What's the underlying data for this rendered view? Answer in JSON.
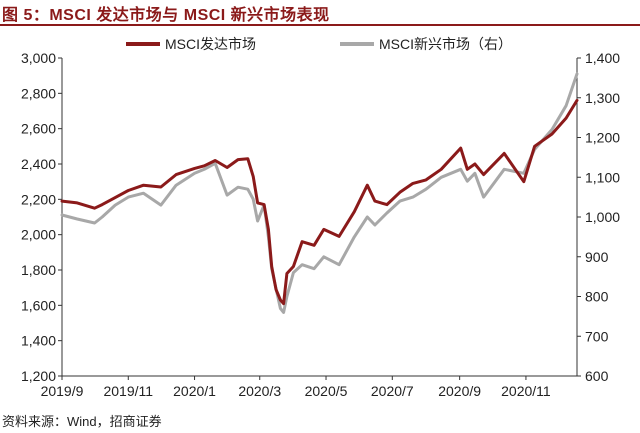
{
  "title": "图 5：MSCI 发达市场与 MSCI 新兴市场表现",
  "source": "资料来源：Wind，招商证券",
  "colors": {
    "title": "#8b1a1a",
    "series_dm": "#8b1a1a",
    "series_em": "#a8a8a8",
    "axis": "#333333"
  },
  "chart_data": {
    "type": "line",
    "title": "图 5：MSCI 发达市场与 MSCI 新兴市场表现",
    "grid": false,
    "legend_position": "top",
    "x_range": [
      "2019-09-01",
      "2020-12-18"
    ],
    "x_ticks": [
      "2019/9",
      "2019/11",
      "2020/1",
      "2020/3",
      "2020/5",
      "2020/7",
      "2020/9",
      "2020/11"
    ],
    "y_left": {
      "min": 1200,
      "max": 3000,
      "ticks": [
        "1,200",
        "1,400",
        "1,600",
        "1,800",
        "2,000",
        "2,200",
        "2,400",
        "2,600",
        "2,800",
        "3,000"
      ]
    },
    "y_right": {
      "min": 600,
      "max": 1400,
      "ticks": [
        "600",
        "700",
        "800",
        "900",
        "1,000",
        "1,100",
        "1,200",
        "1,300",
        "1,400"
      ]
    },
    "series": [
      {
        "name": "MSCI发达市场",
        "axis": "left",
        "points": [
          [
            "2019-09-01",
            2190
          ],
          [
            "2019-09-15",
            2180
          ],
          [
            "2019-10-01",
            2150
          ],
          [
            "2019-10-08",
            2170
          ],
          [
            "2019-10-20",
            2210
          ],
          [
            "2019-11-01",
            2250
          ],
          [
            "2019-11-15",
            2280
          ],
          [
            "2019-12-01",
            2270
          ],
          [
            "2019-12-15",
            2340
          ],
          [
            "2020-01-01",
            2375
          ],
          [
            "2020-01-10",
            2390
          ],
          [
            "2020-01-20",
            2420
          ],
          [
            "2020-01-31",
            2380
          ],
          [
            "2020-02-10",
            2425
          ],
          [
            "2020-02-19",
            2430
          ],
          [
            "2020-02-24",
            2330
          ],
          [
            "2020-02-28",
            2180
          ],
          [
            "2020-03-05",
            2170
          ],
          [
            "2020-03-09",
            2030
          ],
          [
            "2020-03-12",
            1820
          ],
          [
            "2020-03-16",
            1690
          ],
          [
            "2020-03-20",
            1630
          ],
          [
            "2020-03-23",
            1610
          ],
          [
            "2020-03-26",
            1780
          ],
          [
            "2020-04-01",
            1820
          ],
          [
            "2020-04-09",
            1960
          ],
          [
            "2020-04-20",
            1940
          ],
          [
            "2020-04-29",
            2030
          ],
          [
            "2020-05-13",
            1990
          ],
          [
            "2020-05-27",
            2130
          ],
          [
            "2020-06-08",
            2280
          ],
          [
            "2020-06-15",
            2190
          ],
          [
            "2020-06-26",
            2170
          ],
          [
            "2020-07-08",
            2240
          ],
          [
            "2020-07-20",
            2290
          ],
          [
            "2020-08-01",
            2310
          ],
          [
            "2020-08-15",
            2370
          ],
          [
            "2020-09-02",
            2490
          ],
          [
            "2020-09-08",
            2370
          ],
          [
            "2020-09-15",
            2400
          ],
          [
            "2020-09-23",
            2340
          ],
          [
            "2020-10-12",
            2460
          ],
          [
            "2020-10-30",
            2300
          ],
          [
            "2020-11-09",
            2500
          ],
          [
            "2020-11-25",
            2570
          ],
          [
            "2020-12-08",
            2660
          ],
          [
            "2020-12-18",
            2760
          ]
        ]
      },
      {
        "name": "MSCI新兴市场（右）",
        "axis": "right",
        "points": [
          [
            "2019-09-01",
            1005
          ],
          [
            "2019-09-15",
            995
          ],
          [
            "2019-10-01",
            985
          ],
          [
            "2019-10-08",
            1000
          ],
          [
            "2019-10-20",
            1030
          ],
          [
            "2019-11-01",
            1050
          ],
          [
            "2019-11-15",
            1060
          ],
          [
            "2019-12-01",
            1030
          ],
          [
            "2019-12-15",
            1080
          ],
          [
            "2020-01-01",
            1110
          ],
          [
            "2020-01-10",
            1120
          ],
          [
            "2020-01-20",
            1135
          ],
          [
            "2020-01-31",
            1055
          ],
          [
            "2020-02-10",
            1075
          ],
          [
            "2020-02-19",
            1070
          ],
          [
            "2020-02-24",
            1045
          ],
          [
            "2020-02-28",
            990
          ],
          [
            "2020-03-05",
            1030
          ],
          [
            "2020-03-09",
            950
          ],
          [
            "2020-03-12",
            870
          ],
          [
            "2020-03-16",
            820
          ],
          [
            "2020-03-20",
            770
          ],
          [
            "2020-03-23",
            760
          ],
          [
            "2020-03-26",
            800
          ],
          [
            "2020-04-01",
            860
          ],
          [
            "2020-04-09",
            880
          ],
          [
            "2020-04-20",
            870
          ],
          [
            "2020-04-29",
            900
          ],
          [
            "2020-05-13",
            880
          ],
          [
            "2020-05-27",
            950
          ],
          [
            "2020-06-08",
            1000
          ],
          [
            "2020-06-15",
            980
          ],
          [
            "2020-06-26",
            1010
          ],
          [
            "2020-07-08",
            1040
          ],
          [
            "2020-07-20",
            1050
          ],
          [
            "2020-08-01",
            1070
          ],
          [
            "2020-08-15",
            1100
          ],
          [
            "2020-09-02",
            1120
          ],
          [
            "2020-09-08",
            1090
          ],
          [
            "2020-09-15",
            1110
          ],
          [
            "2020-09-23",
            1050
          ],
          [
            "2020-10-12",
            1120
          ],
          [
            "2020-10-30",
            1110
          ],
          [
            "2020-11-09",
            1170
          ],
          [
            "2020-11-25",
            1220
          ],
          [
            "2020-12-08",
            1280
          ],
          [
            "2020-12-18",
            1360
          ]
        ]
      }
    ]
  }
}
